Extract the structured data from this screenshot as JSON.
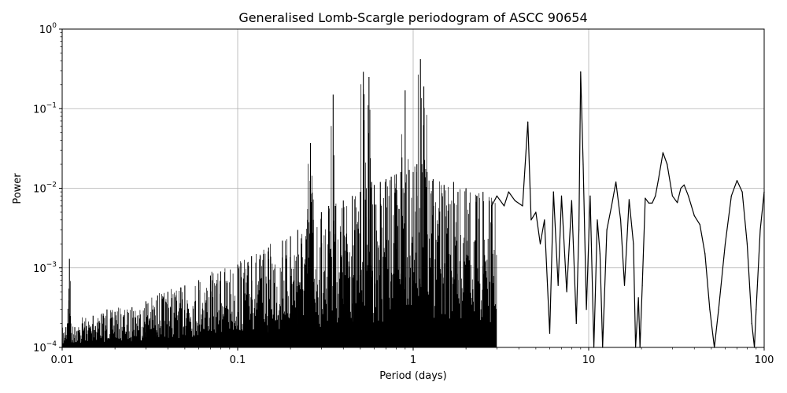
{
  "chart_data": {
    "type": "line",
    "title": "Generalised Lomb-Scargle periodogram of ASCC 90654",
    "xlabel": "Period (days)",
    "ylabel": "Power",
    "xscale": "log",
    "yscale": "log",
    "xlim": [
      0.01,
      100
    ],
    "ylim": [
      0.0001,
      1
    ],
    "grid": true,
    "line_color": "#000000",
    "x_ticks": [
      {
        "value": 0.01,
        "label": "0.01"
      },
      {
        "value": 0.1,
        "label": "0.1"
      },
      {
        "value": 1,
        "label": "1"
      },
      {
        "value": 10,
        "label": "10"
      },
      {
        "value": 100,
        "label": "100"
      }
    ],
    "y_ticks": [
      {
        "value": 0.0001,
        "base": "10",
        "exp": "−4"
      },
      {
        "value": 0.001,
        "base": "10",
        "exp": "−3"
      },
      {
        "value": 0.01,
        "base": "10",
        "exp": "−2"
      },
      {
        "value": 0.1,
        "base": "10",
        "exp": "−1"
      },
      {
        "value": 1,
        "base": "10",
        "exp": "0"
      }
    ],
    "series": [
      {
        "x": [
          0.01,
          0.0105,
          0.0107,
          0.011,
          0.0112,
          0.0118,
          0.013,
          0.015,
          0.018,
          0.02,
          0.025,
          0.03,
          0.035,
          0.04,
          0.05,
          0.06,
          0.07,
          0.08,
          0.1,
          0.12,
          0.15,
          0.18,
          0.2,
          0.22,
          0.25,
          0.26,
          0.27,
          0.3,
          0.33,
          0.35,
          0.36,
          0.4,
          0.45,
          0.5,
          0.52,
          0.54,
          0.56,
          0.58,
          0.6,
          0.65,
          0.7,
          0.75,
          0.8,
          0.85,
          0.9,
          0.95,
          1.0,
          1.05,
          1.1,
          1.12,
          1.15,
          1.2,
          1.3,
          1.5,
          1.7,
          1.8,
          2.0,
          2.3,
          2.5,
          2.8,
          3.0,
          3.3,
          3.5,
          3.8,
          4.2,
          4.5,
          4.7,
          5.0,
          5.3,
          5.6,
          6.0,
          6.3,
          6.7,
          7.0,
          7.5,
          8.0,
          8.5,
          8.8,
          9.0,
          9.3,
          9.7,
          10.2,
          10.7,
          11.2,
          11.6,
          12.0,
          12.7,
          13.5,
          14.3,
          15.2,
          16.0,
          17.0,
          18.0,
          18.5,
          19.2,
          19.6,
          20.2,
          21.0,
          22.0,
          23.0,
          24.0,
          25.0,
          26.5,
          28.0,
          30.0,
          32.0,
          33.5,
          35.0,
          37.0,
          40.0,
          43.0,
          46.0,
          49.0,
          52.0,
          55.0,
          60.0,
          65.0,
          70.0,
          75.0,
          80.0,
          85.0,
          88.0,
          90.0,
          95.0,
          100.0
        ],
        "y": [
          0.00013,
          0.00018,
          0.0002,
          0.0013,
          0.0002,
          0.00018,
          0.0002,
          0.00025,
          0.0003,
          0.00028,
          0.00032,
          0.00038,
          0.00045,
          0.0005,
          0.0006,
          0.0007,
          0.0008,
          0.0009,
          0.0011,
          0.0014,
          0.0018,
          0.0022,
          0.0025,
          0.003,
          0.004,
          0.037,
          0.004,
          0.005,
          0.006,
          0.15,
          0.006,
          0.007,
          0.008,
          0.009,
          0.29,
          0.01,
          0.25,
          0.012,
          0.011,
          0.012,
          0.013,
          0.014,
          0.015,
          0.016,
          0.17,
          0.017,
          0.016,
          0.02,
          0.42,
          0.02,
          0.19,
          0.016,
          0.013,
          0.011,
          0.012,
          0.009,
          0.01,
          0.008,
          0.009,
          0.006,
          0.008,
          0.006,
          0.009,
          0.007,
          0.006,
          0.068,
          0.004,
          0.005,
          0.002,
          0.004,
          0.00015,
          0.009,
          0.0006,
          0.008,
          0.0005,
          0.007,
          0.0002,
          0.003,
          0.29,
          0.02,
          0.0003,
          0.008,
          0.0001,
          0.004,
          0.0015,
          5e-05,
          0.003,
          0.006,
          0.012,
          0.004,
          0.0006,
          0.0072,
          0.002,
          0.0001,
          0.00042,
          5e-05,
          0.0006,
          0.0075,
          0.0065,
          0.0065,
          0.008,
          0.013,
          0.028,
          0.02,
          0.008,
          0.0066,
          0.01,
          0.011,
          0.008,
          0.0045,
          0.0035,
          0.0015,
          0.0003,
          3e-05,
          0.0003,
          0.002,
          0.008,
          0.0125,
          0.009,
          0.002,
          0.0002,
          3e-05,
          0.0003,
          0.003,
          0.009
        ]
      }
    ]
  }
}
